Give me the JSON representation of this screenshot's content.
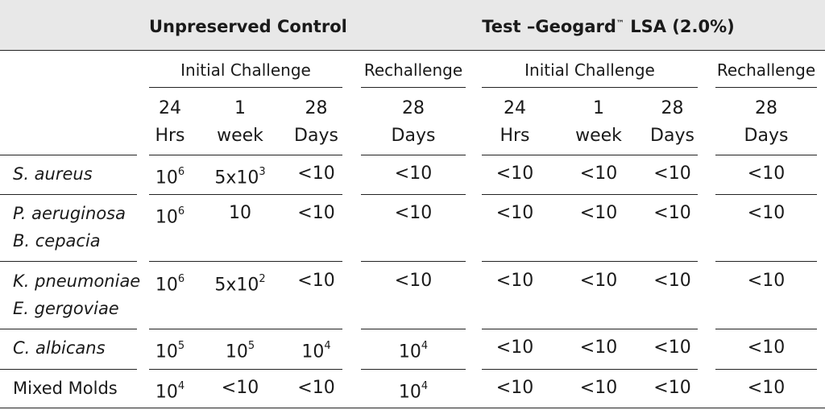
{
  "groups": {
    "control": "Unpreserved Control",
    "test_prefix": "Test –Geogard",
    "test_tm": "™",
    "test_suffix": " LSA (2.0%)"
  },
  "subgroups": {
    "initial": "Initial Challenge",
    "rechallenge": "Rechallenge"
  },
  "time_points": {
    "h24_top": "24",
    "h24_bottom": "Hrs",
    "w1_top": "1",
    "w1_bottom": "week",
    "d28_top": "28",
    "d28_bottom": "Days"
  },
  "rows": [
    {
      "organisms": [
        "S. aureus"
      ],
      "values": [
        {
          "base": "10",
          "exp": "6"
        },
        {
          "base": "5x10",
          "exp": "3"
        },
        {
          "base": "<10",
          "exp": ""
        },
        {
          "base": "<10",
          "exp": ""
        },
        {
          "base": "<10",
          "exp": ""
        },
        {
          "base": "<10",
          "exp": ""
        },
        {
          "base": "<10",
          "exp": ""
        },
        {
          "base": "<10",
          "exp": ""
        }
      ]
    },
    {
      "organisms": [
        "P. aeruginosa",
        "B. cepacia"
      ],
      "values": [
        {
          "base": "10",
          "exp": "6"
        },
        {
          "base": "10",
          "exp": ""
        },
        {
          "base": "<10",
          "exp": ""
        },
        {
          "base": "<10",
          "exp": ""
        },
        {
          "base": "<10",
          "exp": ""
        },
        {
          "base": "<10",
          "exp": ""
        },
        {
          "base": "<10",
          "exp": ""
        },
        {
          "base": "<10",
          "exp": ""
        }
      ]
    },
    {
      "organisms": [
        "K. pneumoniae",
        "E. gergoviae"
      ],
      "values": [
        {
          "base": "10",
          "exp": "6"
        },
        {
          "base": "5x10",
          "exp": "2"
        },
        {
          "base": "<10",
          "exp": ""
        },
        {
          "base": "<10",
          "exp": ""
        },
        {
          "base": "<10",
          "exp": ""
        },
        {
          "base": "<10",
          "exp": ""
        },
        {
          "base": "<10",
          "exp": ""
        },
        {
          "base": "<10",
          "exp": ""
        }
      ]
    },
    {
      "organisms": [
        "C. albicans"
      ],
      "values": [
        {
          "base": "10",
          "exp": "5"
        },
        {
          "base": "10",
          "exp": "5"
        },
        {
          "base": "10",
          "exp": "4"
        },
        {
          "base": "10",
          "exp": "4"
        },
        {
          "base": "<10",
          "exp": ""
        },
        {
          "base": "<10",
          "exp": ""
        },
        {
          "base": "<10",
          "exp": ""
        },
        {
          "base": "<10",
          "exp": ""
        }
      ]
    },
    {
      "organisms": [
        "Mixed Molds"
      ],
      "italic": false,
      "values": [
        {
          "base": "10",
          "exp": "4"
        },
        {
          "base": "<10",
          "exp": ""
        },
        {
          "base": "<10",
          "exp": ""
        },
        {
          "base": "10",
          "exp": "4"
        },
        {
          "base": "<10",
          "exp": ""
        },
        {
          "base": "<10",
          "exp": ""
        },
        {
          "base": "<10",
          "exp": ""
        },
        {
          "base": "<10",
          "exp": ""
        }
      ]
    }
  ]
}
